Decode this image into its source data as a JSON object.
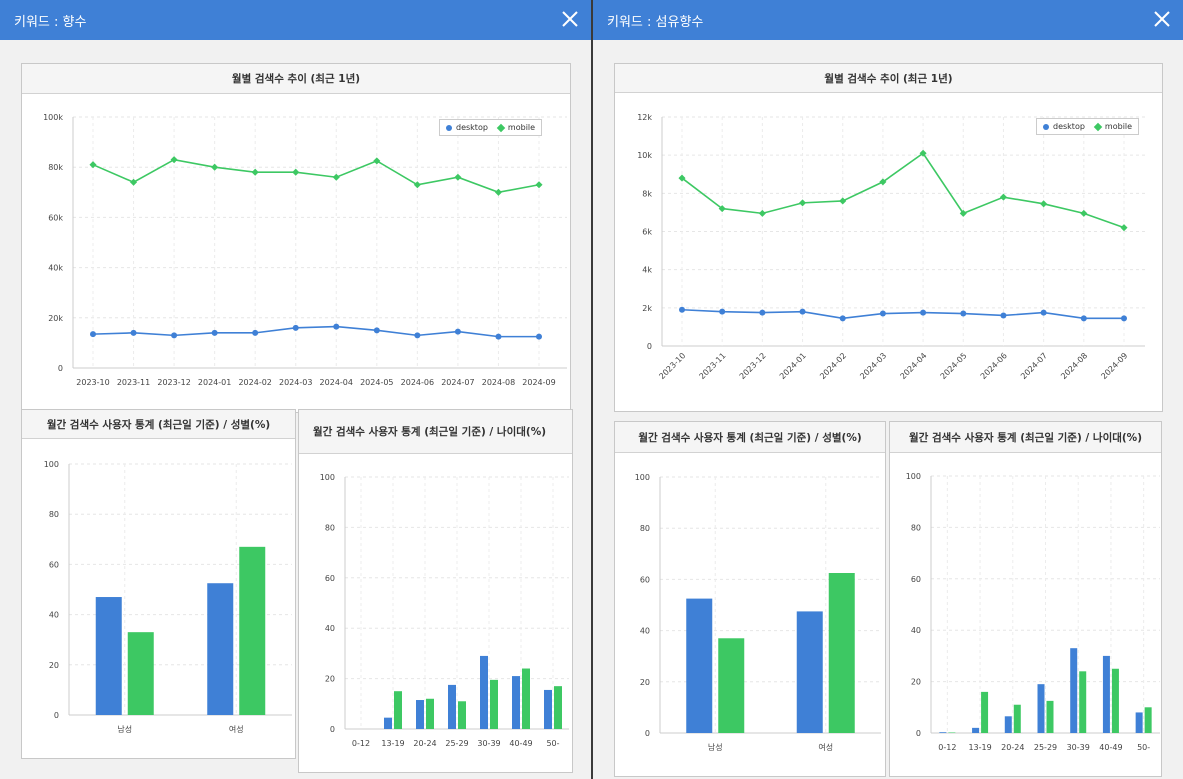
{
  "colors": {
    "titlebar": "#3f80d6",
    "desktop": "#3f80d6",
    "mobile": "#3dc863"
  },
  "left": {
    "title": "키워드 : 향수",
    "monthly": {
      "title": "월별 검색수 추이 (최근 1년)",
      "legend": [
        "desktop",
        "mobile"
      ]
    },
    "gender": {
      "title": "월간 검색수 사용자 통계 (최근일 기준) / 성별(%)"
    },
    "age": {
      "title": "월간 검색수 사용자 통계 (최근일 기준) / 나이대(%)"
    }
  },
  "right": {
    "title": "키워드 : 섬유향수",
    "monthly": {
      "title": "월별 검색수 추이 (최근 1년)",
      "legend": [
        "desktop",
        "mobile"
      ]
    },
    "gender": {
      "title": "월간 검색수 사용자 통계 (최근일 기준) / 성별(%)"
    },
    "age": {
      "title": "월간 검색수 사용자 통계 (최근일 기준) / 나이대(%)"
    }
  },
  "chart_data": [
    {
      "id": "left-monthly",
      "type": "line",
      "title": "월별 검색수 추이 (최근 1년)",
      "x": [
        "2023-10",
        "2023-11",
        "2023-12",
        "2024-01",
        "2024-02",
        "2024-03",
        "2024-04",
        "2024-05",
        "2024-06",
        "2024-07",
        "2024-08",
        "2024-09"
      ],
      "series": [
        {
          "name": "desktop",
          "values": [
            13500,
            14000,
            13000,
            14000,
            14000,
            16000,
            16500,
            15000,
            13000,
            14500,
            12500,
            12500
          ]
        },
        {
          "name": "mobile",
          "values": [
            81000,
            74000,
            83000,
            80000,
            78000,
            78000,
            76000,
            82500,
            73000,
            76000,
            70000,
            73000
          ]
        }
      ],
      "ylim": [
        0,
        100000
      ],
      "yticks": [
        "0",
        "20k",
        "40k",
        "60k",
        "80k",
        "100k"
      ],
      "legend_position": "top-right",
      "grid": true
    },
    {
      "id": "left-gender",
      "type": "bar",
      "title": "월간 검색수 사용자 통계 (최근일 기준) / 성별(%)",
      "categories": [
        "남성",
        "여성"
      ],
      "series": [
        {
          "name": "desktop",
          "values": [
            47,
            52.5
          ]
        },
        {
          "name": "mobile",
          "values": [
            33,
            67
          ]
        }
      ],
      "ylim": [
        0,
        100
      ],
      "yticks": [
        "0",
        "20",
        "40",
        "60",
        "80",
        "100"
      ],
      "grid": true
    },
    {
      "id": "left-age",
      "type": "bar",
      "title": "월간 검색수 사용자 통계 (최근일 기준) / 나이대(%)",
      "categories": [
        "0-12",
        "13-19",
        "20-24",
        "25-29",
        "30-39",
        "40-49",
        "50-"
      ],
      "series": [
        {
          "name": "desktop",
          "values": [
            0,
            4.5,
            11.5,
            17.5,
            29,
            21,
            15.5
          ]
        },
        {
          "name": "mobile",
          "values": [
            0,
            15,
            12,
            11,
            19.5,
            24,
            17
          ]
        }
      ],
      "ylim": [
        0,
        100
      ],
      "yticks": [
        "0",
        "20",
        "40",
        "60",
        "80",
        "100"
      ],
      "grid": true
    },
    {
      "id": "right-monthly",
      "type": "line",
      "title": "월별 검색수 추이 (최근 1년)",
      "x": [
        "2023-10",
        "2023-11",
        "2023-12",
        "2024-01",
        "2024-02",
        "2024-03",
        "2024-04",
        "2024-05",
        "2024-06",
        "2024-07",
        "2024-08",
        "2024-09"
      ],
      "series": [
        {
          "name": "desktop",
          "values": [
            1900,
            1800,
            1750,
            1800,
            1450,
            1700,
            1750,
            1700,
            1600,
            1750,
            1450,
            1450
          ]
        },
        {
          "name": "mobile",
          "values": [
            8800,
            7200,
            6950,
            7500,
            7600,
            8600,
            10100,
            6950,
            7800,
            7450,
            6950,
            6200
          ]
        }
      ],
      "ylim": [
        0,
        12000
      ],
      "yticks": [
        "0",
        "2k",
        "4k",
        "6k",
        "8k",
        "10k",
        "12k"
      ],
      "legend_position": "top-right",
      "grid": true
    },
    {
      "id": "right-gender",
      "type": "bar",
      "title": "월간 검색수 사용자 통계 (최근일 기준) / 성별(%)",
      "categories": [
        "남성",
        "여성"
      ],
      "series": [
        {
          "name": "desktop",
          "values": [
            52.5,
            47.5
          ]
        },
        {
          "name": "mobile",
          "values": [
            37,
            62.5
          ]
        }
      ],
      "ylim": [
        0,
        100
      ],
      "yticks": [
        "0",
        "20",
        "40",
        "60",
        "80",
        "100"
      ],
      "grid": true
    },
    {
      "id": "right-age",
      "type": "bar",
      "title": "월간 검색수 사용자 통계 (최근일 기준) / 나이대(%)",
      "categories": [
        "0-12",
        "13-19",
        "20-24",
        "25-29",
        "30-39",
        "40-49",
        "50-"
      ],
      "series": [
        {
          "name": "desktop",
          "values": [
            0.3,
            2,
            6.5,
            19,
            33,
            30,
            8
          ]
        },
        {
          "name": "mobile",
          "values": [
            0.2,
            16,
            11,
            12.5,
            24,
            25,
            10
          ]
        }
      ],
      "ylim": [
        0,
        100
      ],
      "yticks": [
        "0",
        "20",
        "40",
        "60",
        "80",
        "100"
      ],
      "grid": true
    }
  ]
}
